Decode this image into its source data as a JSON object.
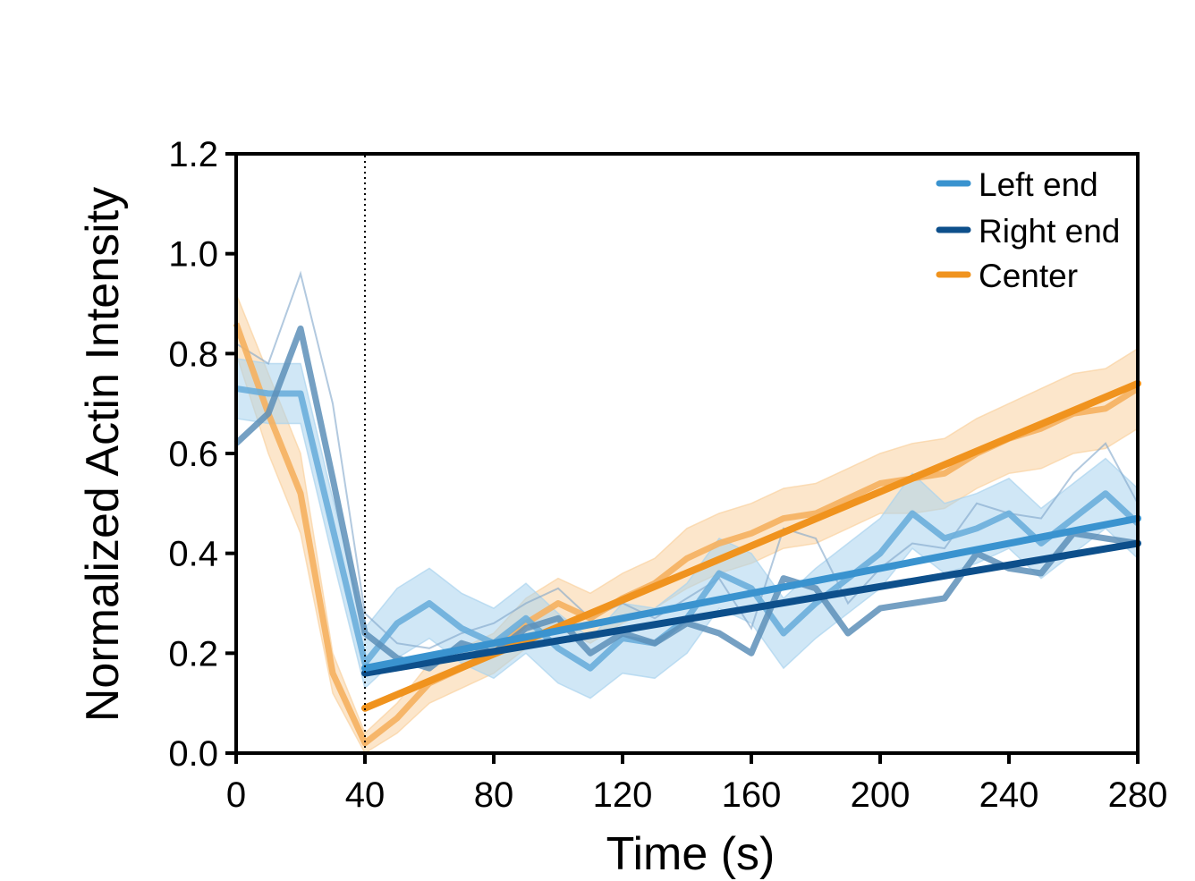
{
  "chart_data": {
    "type": "line",
    "title": "",
    "xlabel": "Time (s)",
    "ylabel": "Normalized Actin Intensity",
    "xlim": [
      0,
      280
    ],
    "ylim": [
      0,
      1.2
    ],
    "xticks": [
      0,
      40,
      80,
      120,
      160,
      200,
      240,
      280
    ],
    "yticks": [
      0.0,
      0.2,
      0.4,
      0.6,
      0.8,
      1.0,
      1.2
    ],
    "xtick_labels": [
      "0",
      "40",
      "80",
      "120",
      "160",
      "200",
      "240",
      "280"
    ],
    "ytick_labels": [
      "0.0",
      "0.2",
      "0.4",
      "0.6",
      "0.8",
      "1.0",
      "1.2"
    ],
    "vline_x": 40,
    "legend_position": "top-right",
    "legend": [
      "Left end",
      "Right end",
      "Center"
    ],
    "colors": {
      "left": "#3a93cf",
      "right": "#0d4f8b",
      "center": "#f0931e",
      "left_band": "#a9d3ee",
      "center_band": "#f9d2a0"
    },
    "series": [
      {
        "name": "Center",
        "key": "center",
        "x": [
          0,
          10,
          20,
          30,
          40,
          50,
          60,
          70,
          80,
          90,
          100,
          110,
          120,
          130,
          140,
          150,
          160,
          170,
          180,
          190,
          200,
          210,
          220,
          230,
          240,
          250,
          260,
          270,
          280
        ],
        "mean": [
          0.86,
          0.68,
          0.52,
          0.16,
          0.02,
          0.07,
          0.14,
          0.17,
          0.2,
          0.26,
          0.3,
          0.27,
          0.31,
          0.34,
          0.39,
          0.42,
          0.44,
          0.47,
          0.48,
          0.51,
          0.54,
          0.55,
          0.56,
          0.6,
          0.63,
          0.65,
          0.68,
          0.69,
          0.73
        ],
        "lower": [
          0.8,
          0.6,
          0.44,
          0.12,
          0.0,
          0.04,
          0.1,
          0.13,
          0.16,
          0.21,
          0.25,
          0.22,
          0.26,
          0.29,
          0.33,
          0.36,
          0.38,
          0.41,
          0.42,
          0.45,
          0.48,
          0.48,
          0.49,
          0.53,
          0.56,
          0.57,
          0.6,
          0.61,
          0.65
        ],
        "upper": [
          0.92,
          0.76,
          0.6,
          0.2,
          0.04,
          0.1,
          0.18,
          0.21,
          0.24,
          0.31,
          0.35,
          0.32,
          0.36,
          0.39,
          0.45,
          0.48,
          0.5,
          0.53,
          0.54,
          0.57,
          0.6,
          0.62,
          0.63,
          0.67,
          0.7,
          0.73,
          0.76,
          0.77,
          0.81
        ],
        "fit": {
          "x": [
            40,
            280
          ],
          "y": [
            0.09,
            0.74
          ]
        }
      },
      {
        "name": "Left end",
        "key": "left",
        "x": [
          0,
          10,
          20,
          30,
          40,
          50,
          60,
          70,
          80,
          90,
          100,
          110,
          120,
          130,
          140,
          150,
          160,
          170,
          180,
          190,
          200,
          210,
          220,
          230,
          240,
          250,
          260,
          270,
          280
        ],
        "mean": [
          0.73,
          0.72,
          0.72,
          0.45,
          0.18,
          0.26,
          0.3,
          0.25,
          0.22,
          0.27,
          0.21,
          0.17,
          0.23,
          0.22,
          0.27,
          0.36,
          0.33,
          0.24,
          0.3,
          0.35,
          0.4,
          0.48,
          0.43,
          0.45,
          0.48,
          0.42,
          0.47,
          0.52,
          0.46
        ],
        "lower": [
          0.67,
          0.66,
          0.66,
          0.39,
          0.13,
          0.19,
          0.23,
          0.18,
          0.15,
          0.2,
          0.14,
          0.11,
          0.16,
          0.15,
          0.2,
          0.29,
          0.26,
          0.17,
          0.23,
          0.28,
          0.33,
          0.41,
          0.36,
          0.38,
          0.41,
          0.35,
          0.4,
          0.45,
          0.39
        ],
        "upper": [
          0.79,
          0.78,
          0.78,
          0.51,
          0.25,
          0.33,
          0.37,
          0.32,
          0.29,
          0.34,
          0.28,
          0.23,
          0.3,
          0.29,
          0.34,
          0.43,
          0.4,
          0.31,
          0.37,
          0.42,
          0.47,
          0.56,
          0.5,
          0.52,
          0.55,
          0.49,
          0.54,
          0.59,
          0.53
        ],
        "fit": {
          "x": [
            40,
            280
          ],
          "y": [
            0.17,
            0.47
          ]
        }
      },
      {
        "name": "Right end",
        "key": "right",
        "x": [
          0,
          10,
          20,
          30,
          40,
          50,
          60,
          70,
          80,
          90,
          100,
          110,
          120,
          130,
          140,
          150,
          160,
          170,
          180,
          190,
          200,
          210,
          220,
          230,
          240,
          250,
          260,
          270,
          280
        ],
        "mean": [
          0.62,
          0.68,
          0.85,
          0.55,
          0.24,
          0.19,
          0.17,
          0.22,
          0.2,
          0.25,
          0.27,
          0.2,
          0.24,
          0.22,
          0.26,
          0.24,
          0.2,
          0.35,
          0.33,
          0.24,
          0.29,
          0.3,
          0.31,
          0.4,
          0.37,
          0.36,
          0.44,
          0.43,
          0.42
        ],
        "faint": [
          0.82,
          0.78,
          0.96,
          0.7,
          0.28,
          0.22,
          0.21,
          0.24,
          0.26,
          0.3,
          0.33,
          0.27,
          0.3,
          0.27,
          0.31,
          0.35,
          0.25,
          0.45,
          0.43,
          0.3,
          0.37,
          0.42,
          0.41,
          0.5,
          0.48,
          0.47,
          0.56,
          0.62,
          0.5
        ],
        "fit": {
          "x": [
            40,
            280
          ],
          "y": [
            0.16,
            0.42
          ]
        }
      }
    ]
  }
}
